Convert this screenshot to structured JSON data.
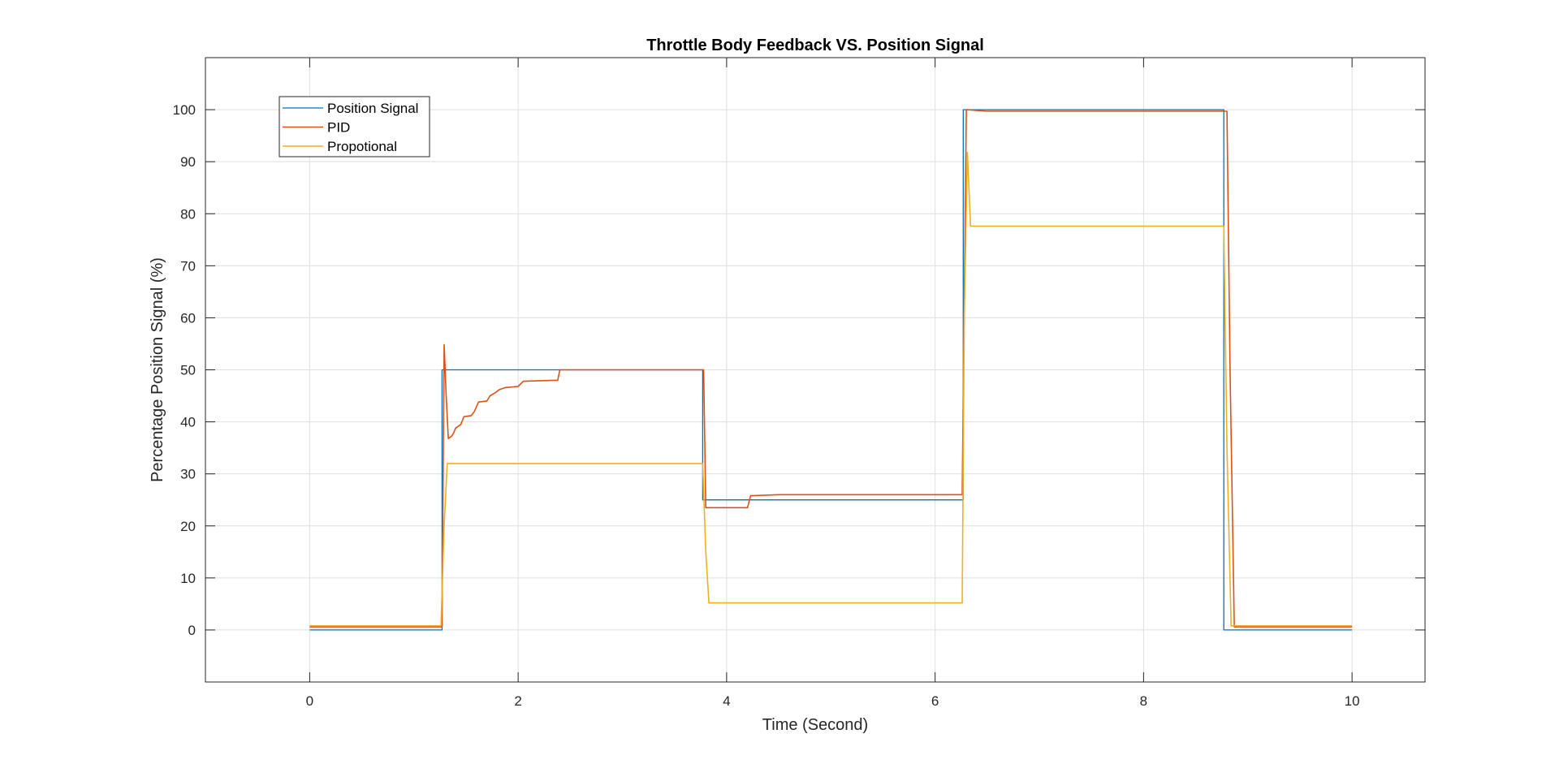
{
  "chart_data": {
    "type": "line",
    "title": "Throttle Body Feedback VS. Position Signal",
    "xlabel": "Time (Second)",
    "ylabel": "Percentage Position Signal (%)",
    "xlim": [
      -1,
      10.7
    ],
    "ylim": [
      -10,
      110
    ],
    "x_ticks": [
      0,
      2,
      4,
      6,
      8,
      10
    ],
    "y_ticks": [
      0,
      10,
      20,
      30,
      40,
      50,
      60,
      70,
      80,
      90,
      100
    ],
    "grid": true,
    "legend_position": "top-left",
    "series": [
      {
        "name": "Position Signal",
        "color": "#0072BD",
        "points": [
          [
            0,
            0
          ],
          [
            1.27,
            0
          ],
          [
            1.27,
            50
          ],
          [
            3.77,
            50
          ],
          [
            3.77,
            25
          ],
          [
            6.27,
            25
          ],
          [
            6.27,
            100
          ],
          [
            8.77,
            100
          ],
          [
            8.77,
            0
          ],
          [
            10,
            0
          ]
        ]
      },
      {
        "name": "PID",
        "color": "#D95319",
        "points": [
          [
            0,
            0.6
          ],
          [
            1.27,
            0.6
          ],
          [
            1.29,
            54.8
          ],
          [
            1.31,
            45
          ],
          [
            1.33,
            36.8
          ],
          [
            1.36,
            37.2
          ],
          [
            1.38,
            37.8
          ],
          [
            1.4,
            38.8
          ],
          [
            1.45,
            39.5
          ],
          [
            1.48,
            41
          ],
          [
            1.55,
            41.2
          ],
          [
            1.58,
            42
          ],
          [
            1.62,
            43.8
          ],
          [
            1.7,
            44
          ],
          [
            1.73,
            45
          ],
          [
            1.78,
            45.6
          ],
          [
            1.82,
            46.2
          ],
          [
            1.88,
            46.6
          ],
          [
            2.0,
            46.8
          ],
          [
            2.05,
            47.8
          ],
          [
            2.38,
            48
          ],
          [
            2.4,
            50
          ],
          [
            3.75,
            50
          ],
          [
            3.78,
            50
          ],
          [
            3.8,
            23.5
          ],
          [
            4.2,
            23.5
          ],
          [
            4.23,
            25.8
          ],
          [
            4.5,
            26
          ],
          [
            6.26,
            26
          ],
          [
            6.3,
            100
          ],
          [
            6.5,
            99.7
          ],
          [
            7.5,
            99.7
          ],
          [
            8.8,
            99.7
          ],
          [
            8.83,
            50
          ],
          [
            8.87,
            0.6
          ],
          [
            10,
            0.6
          ]
        ]
      },
      {
        "name": "Propotional",
        "color": "#EDB120",
        "points": [
          [
            0,
            0.8
          ],
          [
            1.26,
            0.8
          ],
          [
            1.29,
            20
          ],
          [
            1.32,
            32
          ],
          [
            3.77,
            32
          ],
          [
            3.8,
            15
          ],
          [
            3.83,
            5.2
          ],
          [
            6.26,
            5.2
          ],
          [
            6.28,
            60
          ],
          [
            6.31,
            91.8
          ],
          [
            6.34,
            77.6
          ],
          [
            8.77,
            77.6
          ],
          [
            8.8,
            35
          ],
          [
            8.84,
            0.8
          ],
          [
            10,
            0.8
          ]
        ]
      }
    ]
  }
}
